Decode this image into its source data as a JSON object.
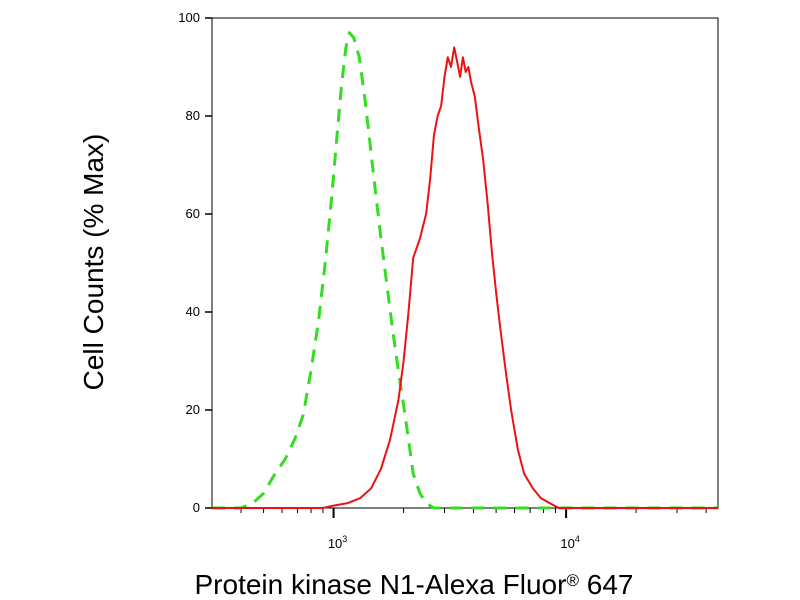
{
  "chart_data": {
    "type": "line",
    "title": "",
    "xlabel": "Protein kinase N1-Alexa Fluor",
    "xlabel_superscript": "®",
    "xlabel_suffix": " 647",
    "ylabel": "Cell Counts (% Max)",
    "x_scale": "log",
    "xlim": [
      300,
      45000
    ],
    "ylim": [
      0,
      100
    ],
    "grid": false,
    "y_ticks": [
      0,
      20,
      40,
      60,
      80,
      100
    ],
    "y_tick_labels": [
      "0",
      "20",
      "40",
      "60",
      "80",
      "100"
    ],
    "x_major_ticks": [
      1000,
      10000
    ],
    "x_tick_labels": [
      {
        "base": "10",
        "exp": "3"
      },
      {
        "base": "10",
        "exp": "4"
      }
    ],
    "x_minor_ticks": [
      400,
      500,
      600,
      700,
      800,
      900,
      2000,
      3000,
      4000,
      5000,
      6000,
      7000,
      8000,
      9000,
      20000,
      30000,
      40000
    ],
    "series": [
      {
        "style": "dashed",
        "color": "#33dd22",
        "points": [
          [
            300,
            0
          ],
          [
            400,
            0
          ],
          [
            450,
            1
          ],
          [
            500,
            3
          ],
          [
            560,
            7
          ],
          [
            620,
            10
          ],
          [
            680,
            14
          ],
          [
            740,
            19
          ],
          [
            800,
            28
          ],
          [
            860,
            38
          ],
          [
            920,
            50
          ],
          [
            980,
            63
          ],
          [
            1030,
            75
          ],
          [
            1080,
            86
          ],
          [
            1130,
            94
          ],
          [
            1170,
            97
          ],
          [
            1220,
            96
          ],
          [
            1290,
            92
          ],
          [
            1360,
            84
          ],
          [
            1430,
            75
          ],
          [
            1510,
            65
          ],
          [
            1600,
            55
          ],
          [
            1700,
            45
          ],
          [
            1800,
            36
          ],
          [
            1900,
            28
          ],
          [
            2000,
            21
          ],
          [
            2100,
            14
          ],
          [
            2200,
            7
          ],
          [
            2350,
            3
          ],
          [
            2500,
            1
          ],
          [
            2700,
            0
          ],
          [
            45000,
            0
          ]
        ]
      },
      {
        "style": "solid",
        "color": "#ee1111",
        "points": [
          [
            300,
            0
          ],
          [
            900,
            0
          ],
          [
            1000,
            0.5
          ],
          [
            1150,
            1
          ],
          [
            1300,
            2
          ],
          [
            1450,
            4
          ],
          [
            1600,
            8
          ],
          [
            1750,
            14
          ],
          [
            1900,
            22
          ],
          [
            2000,
            30
          ],
          [
            2100,
            40
          ],
          [
            2200,
            51
          ],
          [
            2350,
            55
          ],
          [
            2500,
            60
          ],
          [
            2600,
            67
          ],
          [
            2700,
            76
          ],
          [
            2800,
            80
          ],
          [
            2900,
            82
          ],
          [
            3000,
            88
          ],
          [
            3100,
            92
          ],
          [
            3200,
            90
          ],
          [
            3300,
            94
          ],
          [
            3400,
            91
          ],
          [
            3500,
            88
          ],
          [
            3600,
            92
          ],
          [
            3700,
            89
          ],
          [
            3800,
            90
          ],
          [
            3900,
            87
          ],
          [
            4050,
            84
          ],
          [
            4200,
            78
          ],
          [
            4400,
            71
          ],
          [
            4600,
            62
          ],
          [
            4800,
            52
          ],
          [
            5000,
            44
          ],
          [
            5200,
            37
          ],
          [
            5500,
            28
          ],
          [
            5800,
            20
          ],
          [
            6200,
            12
          ],
          [
            6600,
            7
          ],
          [
            7200,
            4
          ],
          [
            7800,
            2
          ],
          [
            8500,
            1
          ],
          [
            9300,
            0
          ],
          [
            45000,
            0
          ]
        ]
      }
    ]
  }
}
